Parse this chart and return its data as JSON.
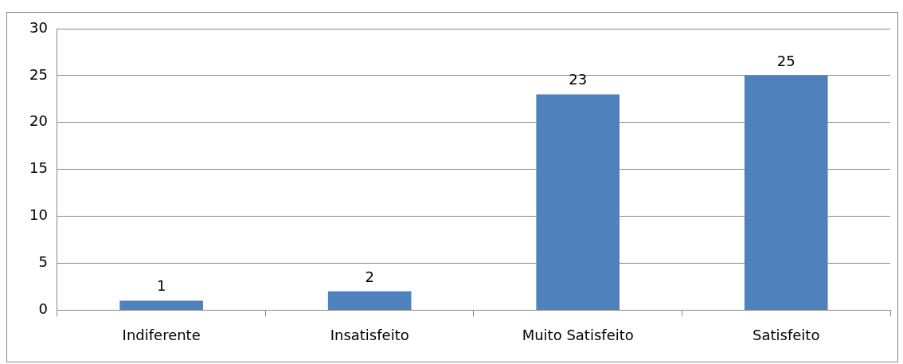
{
  "chart_data": {
    "type": "bar",
    "categories": [
      "Indiferente",
      "Insatisfeito",
      "Muito Satisfeito",
      "Satisfeito"
    ],
    "values": [
      1,
      2,
      23,
      25
    ],
    "color": "#4f81bd",
    "ylim": [
      0,
      30
    ],
    "yticks": [
      0,
      5,
      10,
      15,
      20,
      25,
      30
    ],
    "grid": "y",
    "data_labels": true
  }
}
